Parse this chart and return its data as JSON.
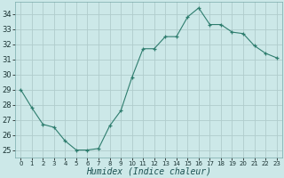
{
  "x": [
    0,
    1,
    2,
    3,
    4,
    5,
    6,
    7,
    8,
    9,
    10,
    11,
    12,
    13,
    14,
    15,
    16,
    17,
    18,
    19,
    20,
    21,
    22,
    23
  ],
  "y": [
    29,
    27.8,
    26.7,
    26.5,
    25.6,
    25.0,
    25.0,
    25.1,
    26.6,
    27.6,
    29.8,
    31.7,
    31.7,
    32.5,
    32.5,
    33.8,
    34.4,
    33.3,
    33.3,
    32.8,
    32.7,
    31.9,
    31.4,
    31.1
  ],
  "line_color": "#2e7d6e",
  "marker": "+",
  "marker_color": "#2e7d6e",
  "bg_color": "#cce8e8",
  "grid_color": "#b0cccc",
  "xlabel": "Humidex (Indice chaleur)",
  "ylabel_ticks": [
    25,
    26,
    27,
    28,
    29,
    30,
    31,
    32,
    33,
    34
  ],
  "ylim": [
    24.5,
    34.8
  ],
  "xlim": [
    -0.5,
    23.5
  ]
}
